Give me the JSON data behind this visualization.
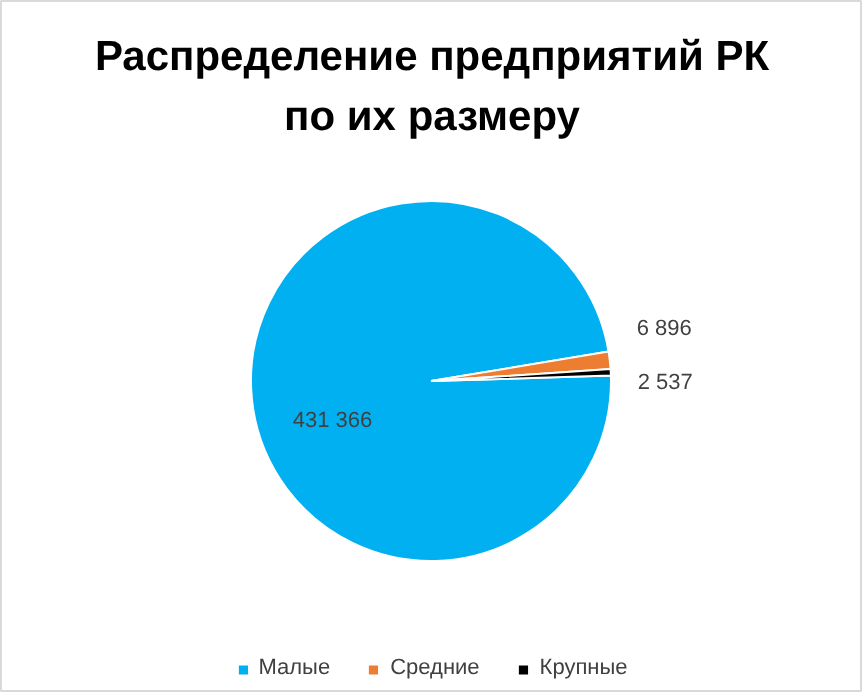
{
  "chart_data": {
    "type": "pie",
    "title": "Распределение предприятий РК\nпо их размеру",
    "categories": [
      "Малые",
      "Средние",
      "Крупные"
    ],
    "values": [
      431366,
      6896,
      2537
    ],
    "colors": [
      "#00b0f0",
      "#ed7d31",
      "#000000"
    ],
    "value_labels": [
      "431 366",
      "6 896",
      "2 537"
    ],
    "legend": "bottom"
  }
}
